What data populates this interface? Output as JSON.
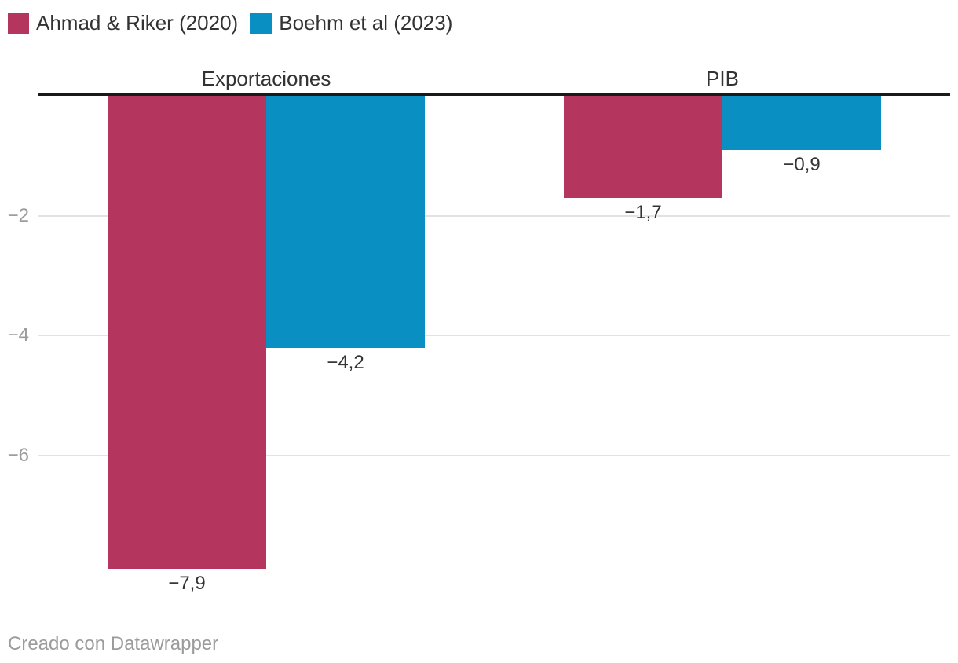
{
  "legend": {
    "items": [
      {
        "label": "Ahmad & Riker (2020)",
        "color": "#b4355e",
        "icon": "square-swatch"
      },
      {
        "label": "Boehm et al (2023)",
        "color": "#0a8fc3",
        "icon": "square-swatch"
      }
    ]
  },
  "footer": {
    "text": "Creado con Datawrapper"
  },
  "colors": {
    "series_1": "#b4355e",
    "series_2": "#0a8fc3",
    "zero_axis_line": "#1a1a1a",
    "gridline": "#e2e2e2",
    "tick_label": "#9c9c9c",
    "label_text": "#333333",
    "footer_text": "#9b9b9b",
    "background": "#ffffff"
  },
  "chart_data": {
    "type": "bar",
    "orientation": "vertical-grouped",
    "title": "",
    "xlabel": "",
    "ylabel": "",
    "categories": [
      "Exportaciones",
      "PIB"
    ],
    "series": [
      {
        "name": "Ahmad & Riker (2020)",
        "color": "#b4355e",
        "values": [
          -7.9,
          -1.7
        ],
        "value_labels": [
          "−7,9",
          "−1,7"
        ]
      },
      {
        "name": "Boehm et al (2023)",
        "color": "#0a8fc3",
        "values": [
          -4.2,
          -0.9
        ],
        "value_labels": [
          "−4,2",
          "−0,9"
        ]
      }
    ],
    "y_axis": {
      "ticks": [
        -2,
        -4,
        -6
      ],
      "tick_labels": [
        "−2",
        "−4",
        "−6"
      ],
      "range": [
        0,
        -8
      ],
      "grid": true,
      "zero_baseline": true
    },
    "legend_position": "top-left",
    "value_labels_visible": true,
    "decimal_format": "comma"
  }
}
